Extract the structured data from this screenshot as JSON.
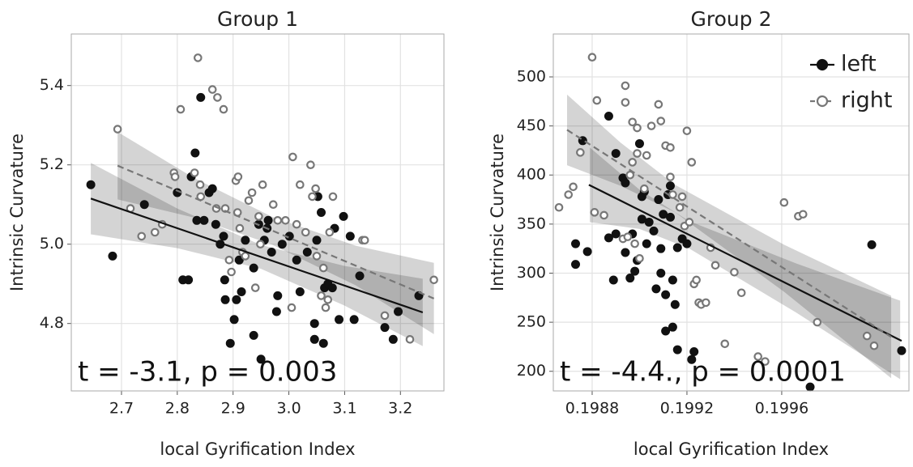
{
  "chart_data": [
    {
      "type": "scatter",
      "title": "Group 1",
      "xlabel": "local Gyrification Index",
      "ylabel": "Intrinsic Curvature",
      "xlim": [
        2.61,
        3.278
      ],
      "ylim": [
        4.63,
        5.53
      ],
      "xticks": [
        2.7,
        2.8,
        2.9,
        {
          "value": 3,
          "label": "3.0"
        },
        3.1,
        3.2
      ],
      "yticks": [
        4.8,
        {
          "value": 5,
          "label": "5.0"
        },
        5.2,
        5.4
      ],
      "grid": true,
      "annotation": "t = -3.1, p = 0.003",
      "series": [
        {
          "color": "#111111",
          "marker": "filled",
          "linestyle": "solid",
          "x": [
            2.645,
            2.684,
            2.741,
            2.8,
            2.81,
            2.82,
            2.832,
            2.825,
            2.835,
            2.842,
            2.848,
            2.857,
            2.863,
            2.869,
            2.877,
            2.883,
            2.885,
            2.886,
            2.895,
            2.902,
            2.906,
            2.911,
            2.915,
            2.922,
            2.937,
            2.937,
            2.946,
            2.95,
            2.956,
            2.961,
            2.963,
            2.969,
            2.978,
            2.98,
            2.988,
            3.001,
            3.014,
            3.02,
            3.033,
            3.046,
            3.046,
            3.05,
            3.052,
            3.058,
            3.062,
            3.064,
            3.07,
            3.078,
            3.082,
            3.09,
            3.098,
            3.11,
            3.117,
            3.127,
            3.172,
            3.187,
            3.196,
            3.233
          ],
          "y": [
            5.15,
            4.97,
            5.1,
            5.13,
            4.91,
            4.91,
            5.23,
            5.17,
            5.06,
            5.37,
            5.06,
            5.13,
            5.14,
            5.05,
            5.0,
            5.02,
            4.91,
            4.86,
            4.75,
            4.81,
            4.86,
            4.96,
            4.88,
            5.01,
            4.77,
            4.94,
            5.05,
            4.71,
            5.01,
            5.04,
            5.06,
            4.98,
            4.83,
            4.87,
            5.0,
            5.02,
            4.96,
            4.88,
            4.98,
            4.8,
            4.76,
            5.01,
            5.12,
            5.08,
            4.75,
            4.89,
            4.9,
            4.89,
            5.04,
            4.81,
            5.07,
            5.02,
            4.81,
            4.92,
            4.79,
            4.76,
            4.83,
            4.87
          ],
          "fit": {
            "x": [
              2.645,
              3.24
            ],
            "y": [
              5.115,
              4.828
            ]
          },
          "band": {
            "x": [
              2.645,
              2.8,
              2.95,
              3.1,
              3.24
            ],
            "lower": [
              5.025,
              4.99,
              4.938,
              4.845,
              4.743
            ],
            "upper": [
              5.205,
              5.09,
              4.998,
              4.945,
              4.913
            ]
          }
        },
        {
          "color": "#777777",
          "marker": "open",
          "linestyle": "dashed",
          "x": [
            2.693,
            2.716,
            2.736,
            2.76,
            2.773,
            2.794,
            2.796,
            2.806,
            2.831,
            2.837,
            2.841,
            2.842,
            2.863,
            2.872,
            2.883,
            2.87,
            2.886,
            2.893,
            2.897,
            2.905,
            2.909,
            2.908,
            2.912,
            2.917,
            2.922,
            2.928,
            2.934,
            2.94,
            2.946,
            2.949,
            2.953,
            2.972,
            2.98,
            2.994,
            3.007,
            3.014,
            3.02,
            3.03,
            3.039,
            3.042,
            3.048,
            3.05,
            3.058,
            3.062,
            3.066,
            3.073,
            3.079,
            3.132,
            3.136,
            3.172,
            3.217,
            3.26,
            3.005,
            3.07
          ],
          "y": [
            5.29,
            5.09,
            5.02,
            5.03,
            5.05,
            5.18,
            5.17,
            5.34,
            5.18,
            5.47,
            5.15,
            5.12,
            5.39,
            5.37,
            5.34,
            5.09,
            5.09,
            4.96,
            4.93,
            5.16,
            5.17,
            5.08,
            5.04,
            4.98,
            4.97,
            5.11,
            5.13,
            4.89,
            5.07,
            5.0,
            5.15,
            5.1,
            5.06,
            5.06,
            5.22,
            5.05,
            5.15,
            5.03,
            5.2,
            5.12,
            5.14,
            4.97,
            4.87,
            4.94,
            4.84,
            5.03,
            5.12,
            5.01,
            5.01,
            4.82,
            4.76,
            4.91,
            4.84,
            4.86
          ],
          "fit": {
            "x": [
              2.693,
              3.26
            ],
            "y": [
              5.198,
              4.863
            ]
          },
          "band": {
            "x": [
              2.693,
              2.83,
              2.97,
              3.12,
              3.26
            ],
            "lower": [
              5.113,
              5.067,
              4.999,
              4.896,
              4.773
            ],
            "upper": [
              5.283,
              5.167,
              5.069,
              4.996,
              4.953
            ]
          }
        }
      ]
    },
    {
      "type": "scatter",
      "title": "Group 2",
      "xlabel": "local Gyrification Index",
      "ylabel": "Intrinsic Curvature",
      "xlim": [
        0.198636,
        0.200137
      ],
      "ylim": [
        180,
        543.7
      ],
      "xticks": [
        0.1988,
        0.1992,
        0.1996
      ],
      "yticks": [
        200,
        250,
        300,
        350,
        400,
        450,
        500
      ],
      "grid": true,
      "annotation": "t = -4.4., p = 0.0001",
      "legend": "upper right",
      "series": [
        {
          "name": "left",
          "color": "#111111",
          "marker": "filled",
          "linestyle": "solid",
          "x": [
            0.19873,
            0.19873,
            0.19876,
            0.19878,
            0.19887,
            0.1989,
            0.19887,
            0.19889,
            0.1989,
            0.19893,
            0.19894,
            0.19894,
            0.19896,
            0.19897,
            0.19898,
            0.19899,
            0.199,
            0.19901,
            0.19901,
            0.19902,
            0.19903,
            0.19904,
            0.19906,
            0.19907,
            0.19908,
            0.19909,
            0.19909,
            0.1991,
            0.19911,
            0.19911,
            0.19912,
            0.19913,
            0.19913,
            0.19914,
            0.19914,
            0.19915,
            0.19916,
            0.19916,
            0.19918,
            0.1992,
            0.19922,
            0.19923,
            0.19972,
            0.19998,
            0.200106
          ],
          "y": [
            330,
            309,
            435,
            322,
            460,
            422,
            336,
            293,
            340,
            397,
            392,
            321,
            295,
            340,
            302,
            313,
            432,
            355,
            378,
            383,
            330,
            352,
            343,
            284,
            375,
            325,
            300,
            360,
            241,
            278,
            380,
            389,
            357,
            293,
            245,
            268,
            326,
            222,
            335,
            330,
            212,
            220,
            184,
            329,
            221
          ],
          "fit": {
            "x": [
              0.198786,
              0.200106
            ],
            "y": [
              390,
              231
            ]
          },
          "band": {
            "x": [
              0.19879,
              0.199,
              0.19921,
              0.19966,
              0.2001
            ],
            "lower": [
              352,
              345,
              325,
              260,
              192
            ],
            "upper": [
              428,
              385,
              353,
              310,
              272
            ]
          }
        },
        {
          "name": "right",
          "color": "#777777",
          "marker": "open",
          "linestyle": "dashed",
          "x": [
            0.19866,
            0.1987,
            0.19872,
            0.19875,
            0.1988,
            0.19882,
            0.19881,
            0.19885,
            0.19894,
            0.19894,
            0.19897,
            0.19899,
            0.19899,
            0.19897,
            0.19896,
            0.19893,
            0.19895,
            0.19898,
            0.199,
            0.19902,
            0.19903,
            0.19905,
            0.19908,
            0.19909,
            0.19911,
            0.19913,
            0.19913,
            0.19914,
            0.19917,
            0.19918,
            0.19919,
            0.1992,
            0.19921,
            0.19922,
            0.19923,
            0.19924,
            0.19925,
            0.19926,
            0.19928,
            0.1993,
            0.19932,
            0.19936,
            0.1994,
            0.19943,
            0.1995,
            0.19953,
            0.19961,
            0.19967,
            0.19969,
            0.19975,
            0.19996,
            0.19999
          ],
          "y": [
            367,
            380,
            388,
            423,
            520,
            476,
            362,
            359,
            491,
            474,
            454,
            448,
            422,
            413,
            400,
            335,
            337,
            330,
            315,
            386,
            420,
            450,
            472,
            455,
            430,
            428,
            398,
            380,
            367,
            378,
            348,
            445,
            352,
            413,
            289,
            293,
            270,
            268,
            270,
            326,
            308,
            228,
            301,
            280,
            215,
            210,
            372,
            358,
            360,
            250,
            236,
            226
          ],
          "fit": {
            "x": [
              0.198694,
              0.200062
            ],
            "y": [
              446,
              235
            ]
          },
          "band": {
            "x": [
              0.198694,
              0.19892,
              0.19915,
              0.19961,
              0.200062
            ],
            "lower": [
              410,
              389,
              362,
              281,
              193
            ],
            "upper": [
              482,
              433,
              390,
              329,
              277
            ]
          }
        }
      ]
    }
  ]
}
